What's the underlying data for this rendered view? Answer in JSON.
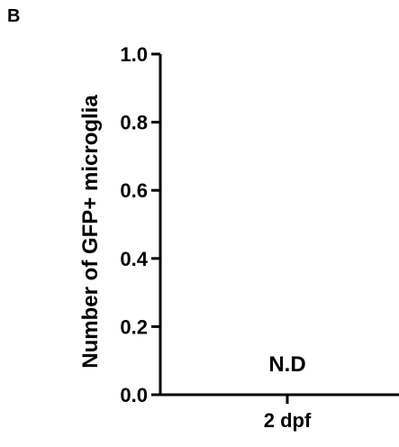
{
  "panel_label": "B",
  "chart_data": {
    "type": "bar",
    "categories": [
      "2 dpf"
    ],
    "values": [
      0
    ],
    "title": "",
    "xlabel": "",
    "ylabel": "Number of GFP+ microglia",
    "ylim": [
      0,
      1.0
    ],
    "yticks": [
      "0.0",
      "0.2",
      "0.4",
      "0.6",
      "0.8",
      "1.0"
    ],
    "grid": false,
    "annotations": [
      {
        "category": "2 dpf",
        "text": "N.D"
      }
    ],
    "colors": {
      "axis": "#000000",
      "bar": "#000000"
    }
  }
}
